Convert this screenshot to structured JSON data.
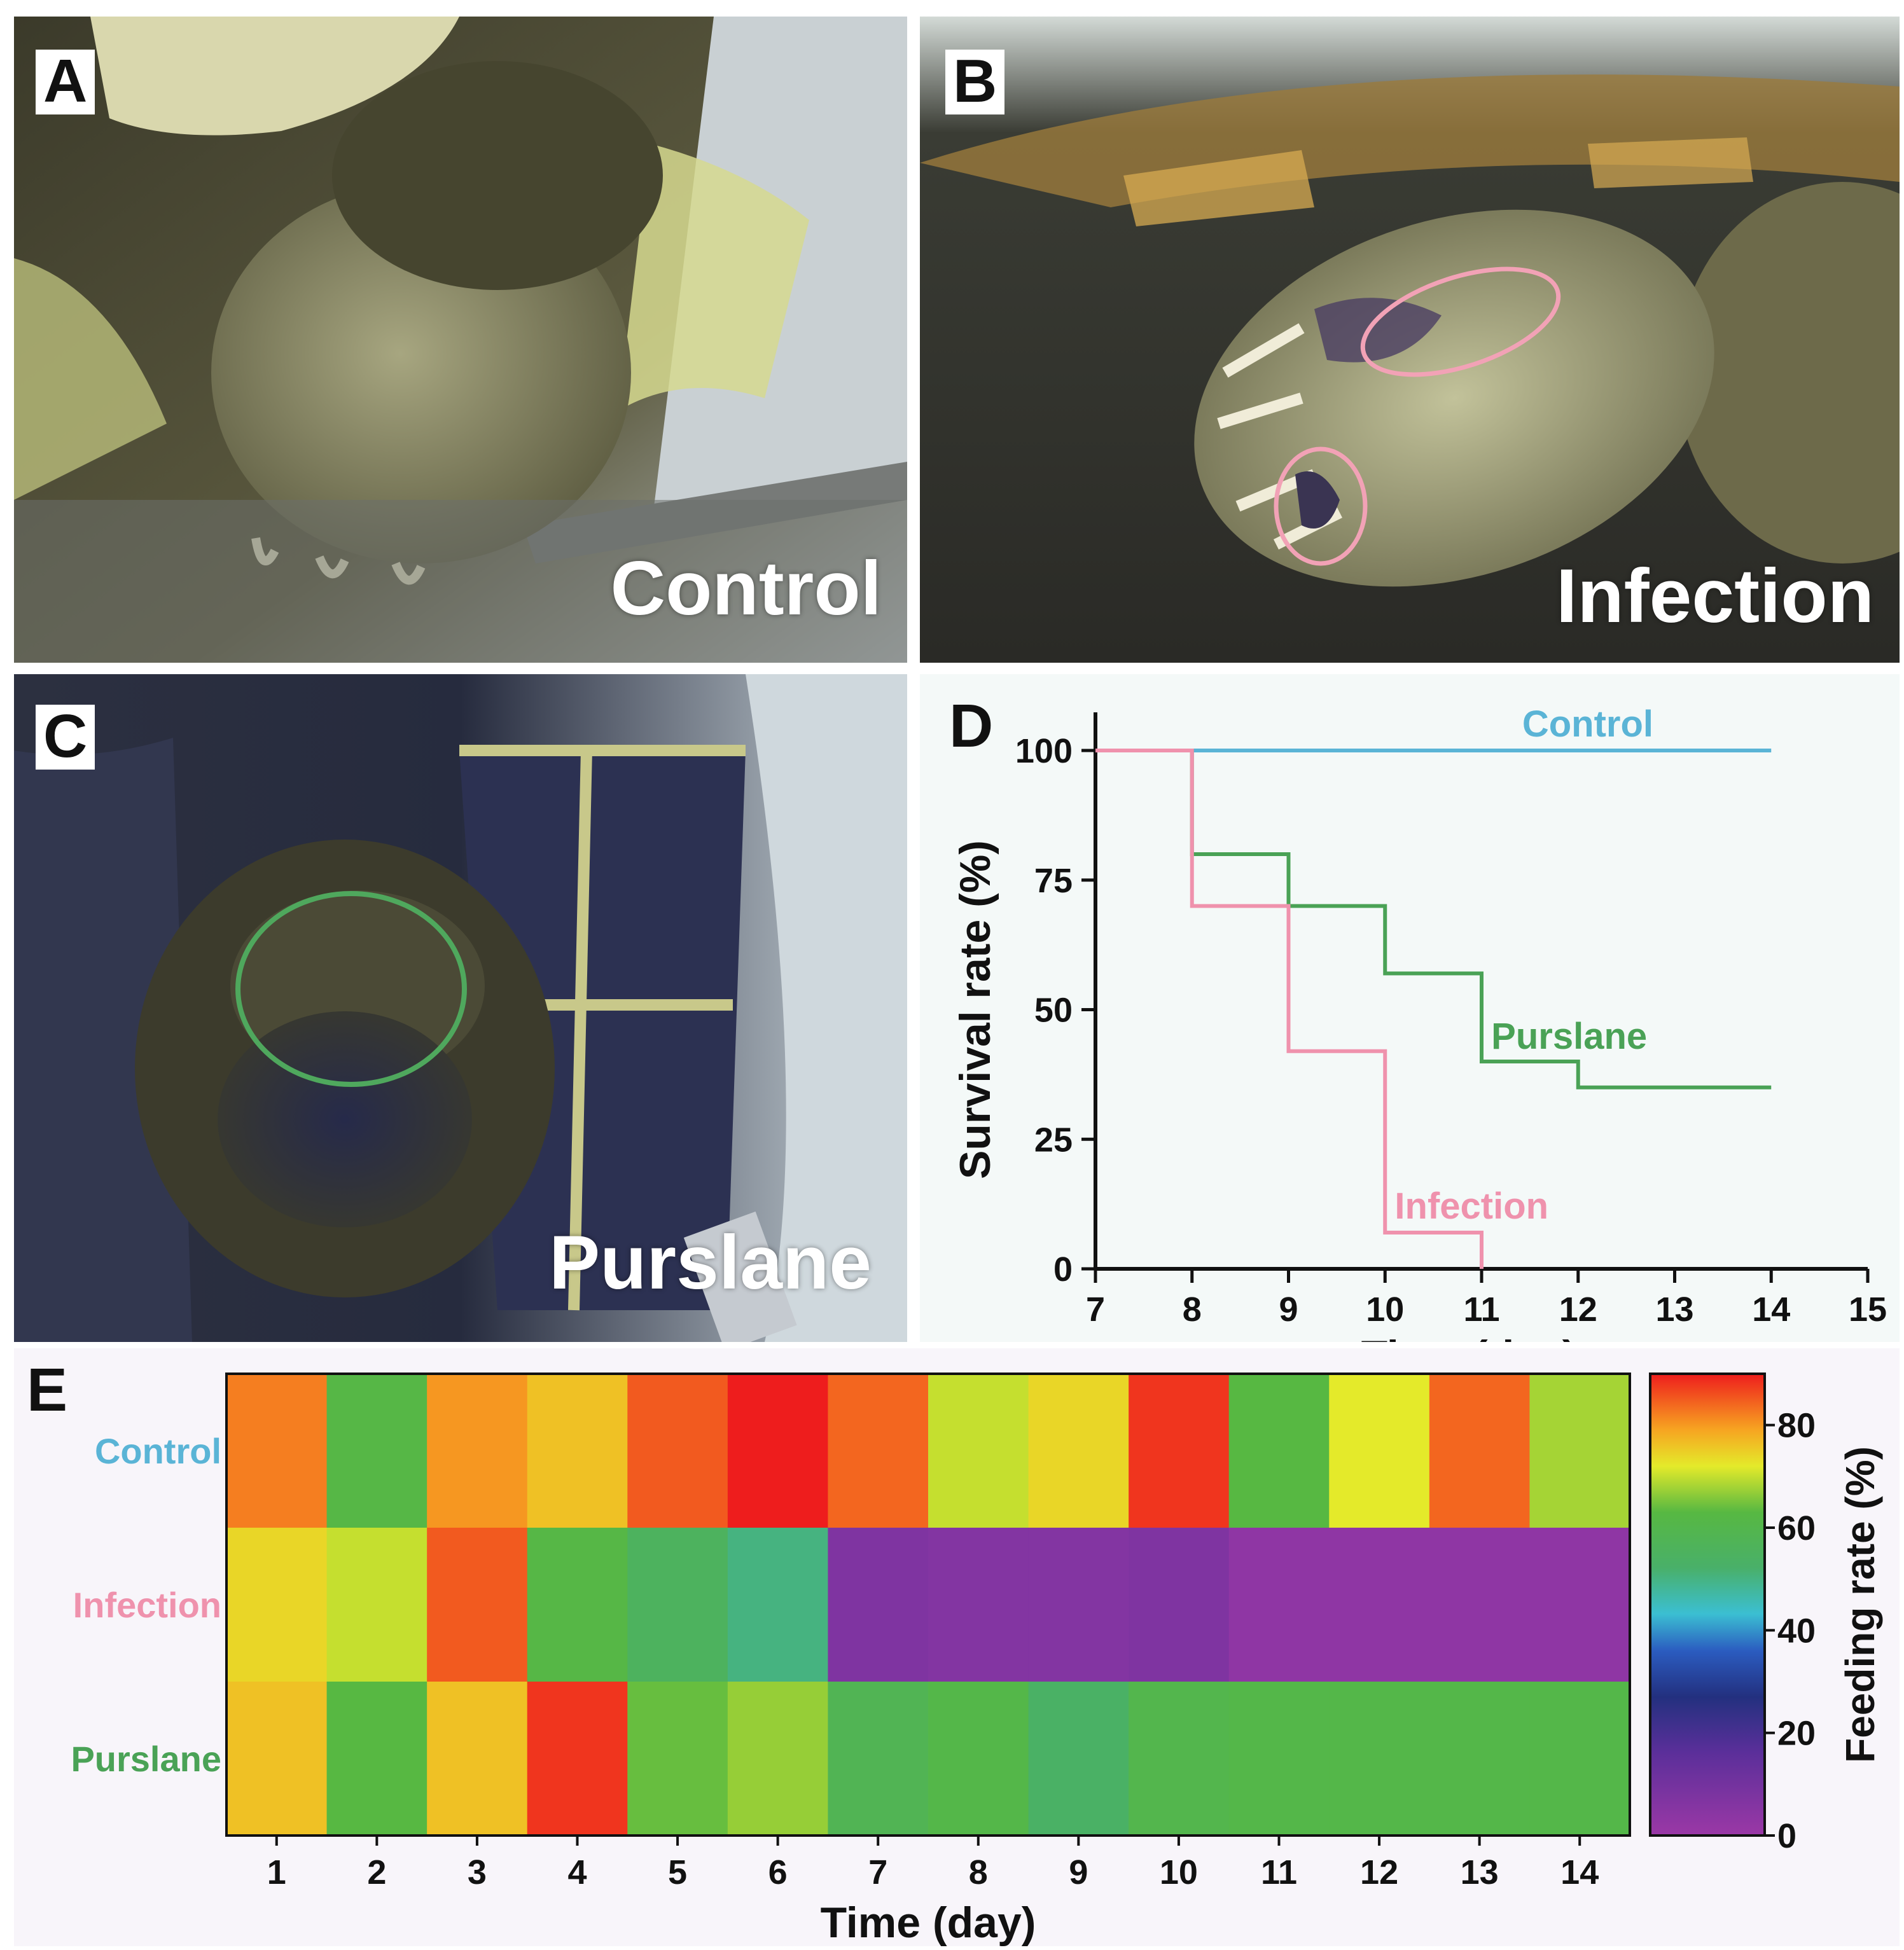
{
  "panels": {
    "a": {
      "letter": "A",
      "caption": "Control"
    },
    "b": {
      "letter": "B",
      "caption": "Infection"
    },
    "c": {
      "letter": "C",
      "caption": "Purslane"
    },
    "d": {
      "letter": "D"
    },
    "e": {
      "letter": "E"
    }
  },
  "colors": {
    "control": "#5ab4d6",
    "infection": "#ef92ad",
    "purslane": "#4aa256",
    "lesion_circle_b": "#f2a2b6",
    "lesion_circle_c": "#4fa85d"
  },
  "chart_data": [
    {
      "id": "D",
      "type": "line",
      "step": true,
      "xlabel": "Time (day)",
      "ylabel": "Survival rate (%)",
      "xlim": [
        7,
        15
      ],
      "ylim": [
        0,
        100
      ],
      "xticks": [
        "7",
        "8",
        "9",
        "10",
        "11",
        "12",
        "13",
        "14",
        "15"
      ],
      "yticks": [
        "0",
        "25",
        "50",
        "75",
        "100"
      ],
      "series": [
        {
          "name": "Control",
          "color": "#5ab4d6",
          "x": [
            7,
            14
          ],
          "y": [
            100,
            100
          ]
        },
        {
          "name": "Purslane",
          "color": "#4aa256",
          "x": [
            7,
            8,
            9,
            10,
            11,
            12,
            14
          ],
          "y": [
            100,
            80,
            70,
            57,
            40,
            35,
            35
          ]
        },
        {
          "name": "Infection",
          "color": "#ef92ad",
          "x": [
            7,
            8,
            9,
            10,
            11
          ],
          "y": [
            100,
            70,
            42,
            7,
            0
          ]
        }
      ]
    },
    {
      "id": "E",
      "type": "heatmap",
      "xlabel": "Time (day)",
      "columns": [
        "1",
        "2",
        "3",
        "4",
        "5",
        "6",
        "7",
        "8",
        "9",
        "10",
        "11",
        "12",
        "13",
        "14"
      ],
      "rows": [
        {
          "name": "Control",
          "color": "#5ab4d6",
          "values": [
            82,
            62,
            80,
            76,
            85,
            90,
            84,
            70,
            74,
            88,
            63,
            72,
            84,
            68
          ]
        },
        {
          "name": "Infection",
          "color": "#ef92ad",
          "values": [
            74,
            70,
            85,
            62,
            55,
            50,
            7,
            6,
            6,
            7,
            3,
            3,
            3,
            3
          ]
        },
        {
          "name": "Purslane",
          "color": "#4aa256",
          "values": [
            76,
            63,
            76,
            88,
            64,
            67,
            58,
            61,
            53,
            60,
            61,
            61,
            61,
            61
          ]
        }
      ],
      "colorbar": {
        "label": "Feeding rate (%)",
        "min": 0,
        "max": 90,
        "ticks": [
          "0",
          "20",
          "40",
          "60",
          "80"
        ]
      }
    }
  ]
}
